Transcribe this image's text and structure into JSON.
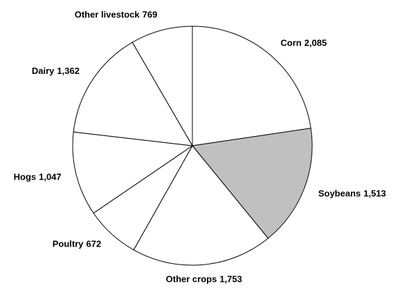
{
  "chart_data": {
    "type": "pie",
    "categories": [
      "Corn",
      "Soybeans",
      "Other crops",
      "Poultry",
      "Hogs",
      "Dairy",
      "Other livestock"
    ],
    "values": [
      2085,
      1513,
      1753,
      672,
      1047,
      1362,
      769
    ],
    "value_labels": [
      "2,085",
      "1,513",
      "1,753",
      "672",
      "1,047",
      "1,362",
      "769"
    ],
    "colors": [
      "#ffffff",
      "#c0c0c0",
      "#ffffff",
      "#ffffff",
      "#ffffff",
      "#ffffff",
      "#ffffff"
    ]
  }
}
